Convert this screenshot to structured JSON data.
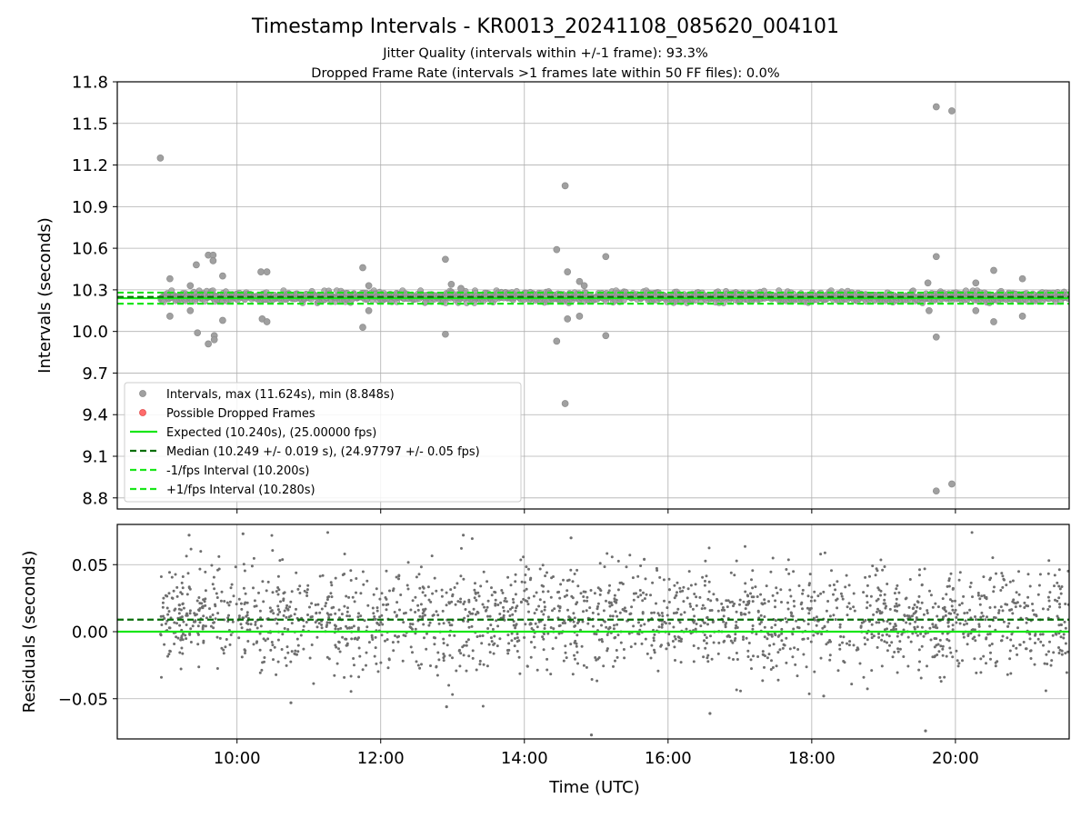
{
  "chart_data": [
    {
      "type": "scatter",
      "title": "Timestamp Intervals - KR0013_20241108_085620_004101",
      "subtitle_lines": [
        "Jitter Quality (intervals within +/-1 frame): 93.3%",
        "Dropped Frame Rate (intervals >1 frames late within 50 FF files): 0.0%"
      ],
      "ylabel": "Intervals (seconds)",
      "xlabel": "",
      "x_unit": "time of day (UTC)",
      "xlim": [
        "08:20",
        "21:35"
      ],
      "ylim": [
        8.72,
        11.8
      ],
      "y_ticks": [
        "8.8",
        "9.1",
        "9.4",
        "9.7",
        "10.0",
        "10.3",
        "10.6",
        "10.9",
        "11.2",
        "11.5",
        "11.8"
      ],
      "x_ticks": [
        "10:00",
        "12:00",
        "14:00",
        "16:00",
        "18:00",
        "20:00"
      ],
      "grid": true,
      "legend_position": "lower-left",
      "legend": [
        {
          "label": "Intervals, max (11.624s), min (8.848s)",
          "kind": "marker",
          "color": "#a0a0a0"
        },
        {
          "label": "Possible Dropped Frames",
          "kind": "marker",
          "color": "#ff5c5c"
        },
        {
          "label": "Expected (10.240s), (25.00000 fps)",
          "kind": "line",
          "color": "#19e619"
        },
        {
          "label": "Median (10.249 +/- 0.019 s), (24.97797 +/- 0.05 fps)",
          "kind": "dashed",
          "color": "#0a6e0a"
        },
        {
          "label": "-1/fps Interval (10.200s)",
          "kind": "dashed",
          "color": "#19e619"
        },
        {
          "label": "+1/fps Interval (10.280s)",
          "kind": "dashed",
          "color": "#19e619"
        }
      ],
      "reference_lines": {
        "expected": 10.24,
        "median": 10.249,
        "minus_one_fps": 10.2,
        "plus_one_fps": 10.28
      },
      "series": [
        {
          "name": "Intervals, max (11.624s), min (8.848s)",
          "color": "#a0a0a0",
          "core_band": {
            "x_start": "08:56",
            "x_end": "21:35",
            "y_min": 10.2,
            "y_max": 10.3
          },
          "outliers": [
            {
              "x": "08:56",
              "y": 11.25
            },
            {
              "x": "09:04",
              "y": 10.38
            },
            {
              "x": "09:04",
              "y": 10.11
            },
            {
              "x": "09:21",
              "y": 10.33
            },
            {
              "x": "09:21",
              "y": 10.15
            },
            {
              "x": "09:26",
              "y": 10.48
            },
            {
              "x": "09:27",
              "y": 9.99
            },
            {
              "x": "09:36",
              "y": 10.55
            },
            {
              "x": "09:36",
              "y": 9.91
            },
            {
              "x": "09:40",
              "y": 10.55
            },
            {
              "x": "09:40",
              "y": 10.51
            },
            {
              "x": "09:41",
              "y": 9.97
            },
            {
              "x": "09:41",
              "y": 9.94
            },
            {
              "x": "09:48",
              "y": 10.4
            },
            {
              "x": "09:48",
              "y": 10.08
            },
            {
              "x": "10:20",
              "y": 10.43
            },
            {
              "x": "10:21",
              "y": 10.09
            },
            {
              "x": "10:25",
              "y": 10.43
            },
            {
              "x": "10:25",
              "y": 10.07
            },
            {
              "x": "11:45",
              "y": 10.46
            },
            {
              "x": "11:45",
              "y": 10.03
            },
            {
              "x": "11:50",
              "y": 10.33
            },
            {
              "x": "11:50",
              "y": 10.15
            },
            {
              "x": "12:54",
              "y": 10.52
            },
            {
              "x": "12:54",
              "y": 9.98
            },
            {
              "x": "12:59",
              "y": 10.34
            },
            {
              "x": "13:07",
              "y": 10.31
            },
            {
              "x": "14:27",
              "y": 10.59
            },
            {
              "x": "14:27",
              "y": 9.93
            },
            {
              "x": "14:34",
              "y": 11.05
            },
            {
              "x": "14:34",
              "y": 9.48
            },
            {
              "x": "14:36",
              "y": 10.43
            },
            {
              "x": "14:36",
              "y": 10.09
            },
            {
              "x": "14:46",
              "y": 10.36
            },
            {
              "x": "14:46",
              "y": 10.11
            },
            {
              "x": "14:50",
              "y": 10.33
            },
            {
              "x": "15:08",
              "y": 10.54
            },
            {
              "x": "15:08",
              "y": 9.97
            },
            {
              "x": "19:37",
              "y": 10.35
            },
            {
              "x": "19:38",
              "y": 10.15
            },
            {
              "x": "19:44",
              "y": 11.62
            },
            {
              "x": "19:44",
              "y": 10.54
            },
            {
              "x": "19:44",
              "y": 9.96
            },
            {
              "x": "19:44",
              "y": 8.85
            },
            {
              "x": "19:57",
              "y": 11.59
            },
            {
              "x": "19:57",
              "y": 8.9
            },
            {
              "x": "20:17",
              "y": 10.35
            },
            {
              "x": "20:17",
              "y": 10.15
            },
            {
              "x": "20:32",
              "y": 10.44
            },
            {
              "x": "20:32",
              "y": 10.07
            },
            {
              "x": "20:56",
              "y": 10.38
            },
            {
              "x": "20:56",
              "y": 10.11
            }
          ]
        }
      ]
    },
    {
      "type": "scatter",
      "title": "",
      "xlabel": "Time (UTC)",
      "ylabel": "Residuals (seconds)",
      "xlim": [
        "08:20",
        "21:35"
      ],
      "ylim": [
        -0.08,
        0.08
      ],
      "y_ticks": [
        "−0.05",
        "0.00",
        "0.05"
      ],
      "x_ticks": [
        "10:00",
        "12:00",
        "14:00",
        "16:00",
        "18:00",
        "20:00"
      ],
      "grid": true,
      "reference_lines": {
        "expected": 0.0,
        "median": 0.009
      },
      "series": [
        {
          "name": "Residuals",
          "color": "#6e6e6e",
          "distribution": {
            "x_start": "08:56",
            "x_end": "21:35",
            "center": 0.009,
            "stdev": 0.019,
            "clip": [
              -0.077,
              0.074
            ],
            "approx_points": 2000
          },
          "extremes": [
            {
              "x": "09:20",
              "y": 0.072
            },
            {
              "x": "10:05",
              "y": 0.073
            },
            {
              "x": "13:09",
              "y": 0.072
            },
            {
              "x": "14:39",
              "y": 0.07
            },
            {
              "x": "14:56",
              "y": -0.077
            },
            {
              "x": "19:35",
              "y": -0.074
            },
            {
              "x": "16:35",
              "y": -0.061
            },
            {
              "x": "12:55",
              "y": -0.056
            },
            {
              "x": "18:10",
              "y": -0.048
            },
            {
              "x": "10:45",
              "y": -0.053
            }
          ]
        }
      ]
    }
  ]
}
